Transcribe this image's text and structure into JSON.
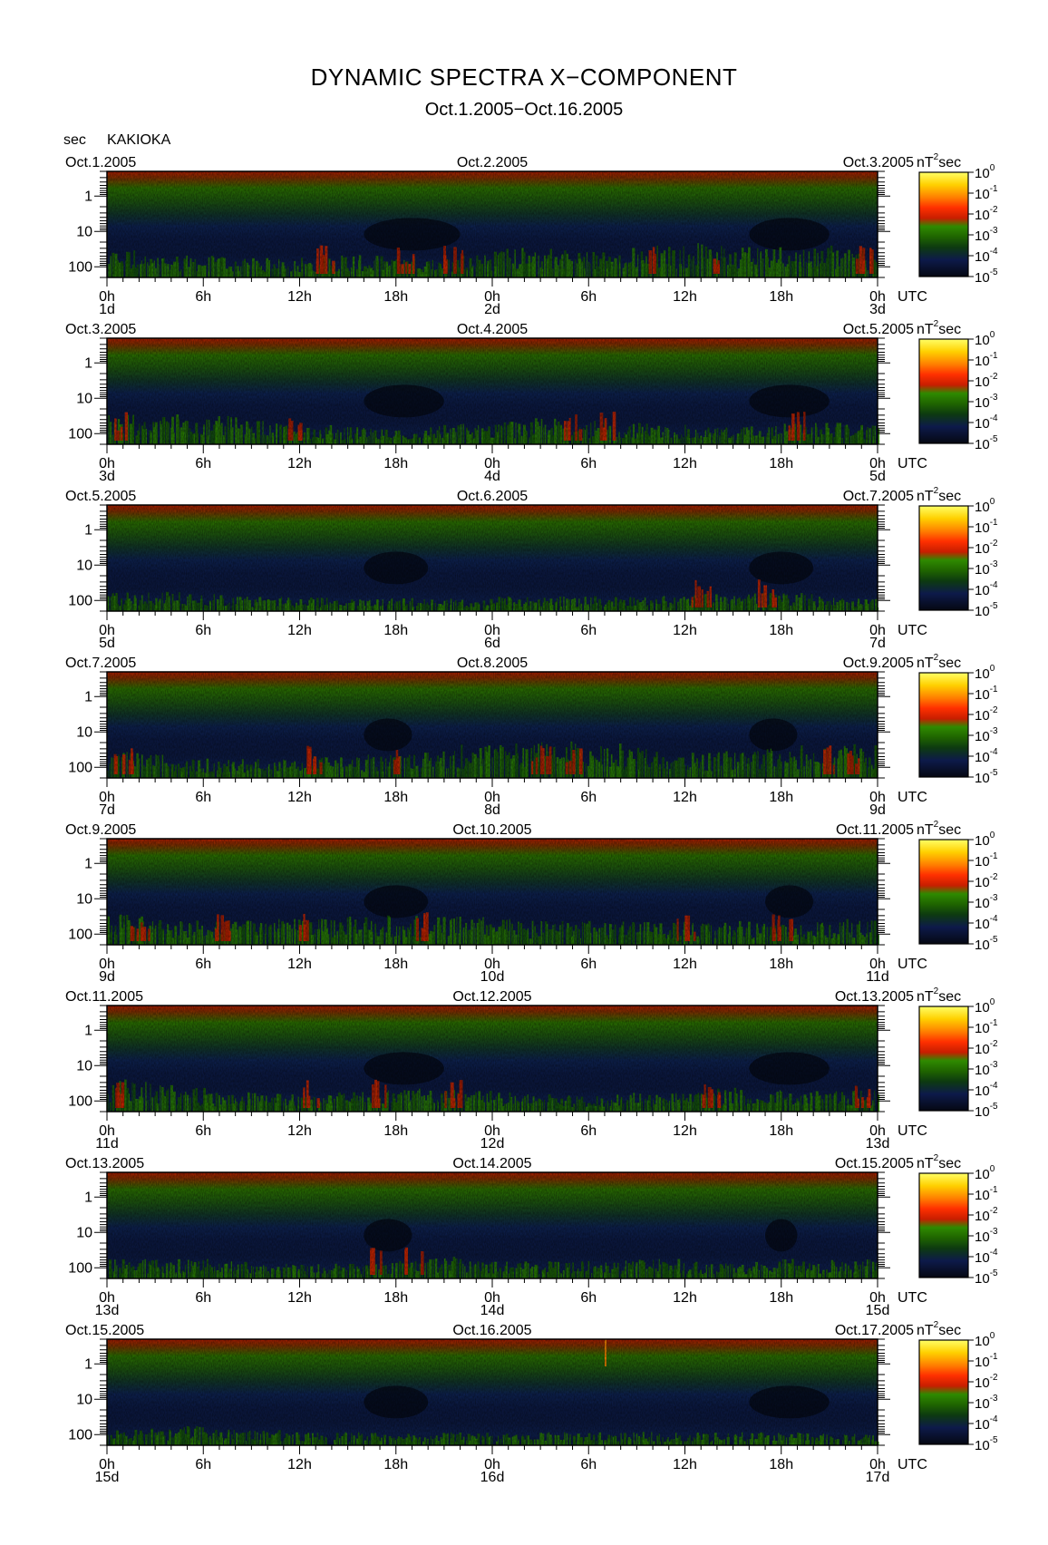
{
  "title": "DYNAMIC SPECTRA X−COMPONENT",
  "subtitle": "Oct.1.2005−Oct.16.2005",
  "y_unit": "sec",
  "station": "KAKIOKA",
  "time_axis_label": "UTC",
  "colorbar_unit_prefix": "nT",
  "colorbar_unit_exp": "2",
  "colorbar_unit_suffix": "sec",
  "chart_data": {
    "type": "heatmap",
    "ylabel": "sec",
    "y_scale": "log",
    "y_ticks": [
      "1",
      "10",
      "100"
    ],
    "x_ticks": [
      "0h",
      "6h",
      "12h",
      "18h",
      "0h",
      "6h",
      "12h",
      "18h",
      "0h"
    ],
    "colorbar": {
      "scale": "log",
      "tick_base": "10",
      "tick_exponents": [
        "0",
        "-1",
        "-2",
        "-3",
        "-4",
        "-5"
      ],
      "colors": [
        "#ffff66",
        "#ffc000",
        "#ff6000",
        "#e02000",
        "#b41e00",
        "#2f7f00",
        "#1f5f00",
        "#0b3818",
        "#0d1a4a",
        "#050812"
      ]
    },
    "panels": [
      {
        "start_label": "Oct.1.2005",
        "mid_label": "Oct.2.2005",
        "end_label": "Oct.3.2005",
        "day_start": "1d",
        "day_mid": "2d",
        "day_end": "3d",
        "dark_band_hours": [
          [
            16,
            22
          ],
          [
            40,
            45
          ]
        ],
        "red_event_hours": [
          13.5,
          18.5,
          21.5,
          34,
          38,
          47
        ],
        "activity": [
          0.65,
          0.5,
          0.55,
          0.5,
          0.45,
          0.45,
          0.5,
          0.55,
          0.5,
          0.45,
          0.45,
          0.55,
          0.7,
          0.7,
          0.65,
          0.6,
          0.7,
          0.75,
          0.8,
          0.75,
          0.75,
          0.7,
          0.75,
          0.65,
          0.6
        ]
      },
      {
        "start_label": "Oct.3.2005",
        "mid_label": "Oct.4.2005",
        "end_label": "Oct.5.2005",
        "day_start": "3d",
        "day_mid": "4d",
        "day_end": "5d",
        "dark_band_hours": [
          [
            16,
            21
          ],
          [
            40,
            45
          ]
        ],
        "red_event_hours": [
          1,
          11.5,
          29,
          31,
          43
        ],
        "activity": [
          0.75,
          0.7,
          0.75,
          0.65,
          0.55,
          0.5,
          0.45,
          0.4,
          0.35,
          0.35,
          0.45,
          0.5,
          0.55,
          0.6,
          0.55,
          0.55,
          0.5,
          0.45,
          0.4,
          0.4,
          0.45,
          0.5,
          0.5,
          0.45,
          0.45
        ]
      },
      {
        "start_label": "Oct.5.2005",
        "mid_label": "Oct.6.2005",
        "end_label": "Oct.7.2005",
        "day_start": "5d",
        "day_mid": "6d",
        "day_end": "7d",
        "dark_band_hours": [
          [
            16,
            20
          ],
          [
            40,
            44
          ]
        ],
        "red_event_hours": [
          37,
          41
        ],
        "activity": [
          0.45,
          0.45,
          0.45,
          0.4,
          0.35,
          0.35,
          0.35,
          0.3,
          0.3,
          0.3,
          0.3,
          0.3,
          0.35,
          0.35,
          0.35,
          0.35,
          0.35,
          0.35,
          0.4,
          0.4,
          0.45,
          0.45,
          0.35,
          0.3,
          0.3
        ]
      },
      {
        "start_label": "Oct.7.2005",
        "mid_label": "Oct.8.2005",
        "end_label": "Oct.9.2005",
        "day_start": "7d",
        "day_mid": "8d",
        "day_end": "9d",
        "dark_band_hours": [
          [
            16,
            19
          ],
          [
            40,
            43
          ]
        ],
        "red_event_hours": [
          1,
          13,
          17.5,
          27,
          29,
          45,
          46.5
        ],
        "activity": [
          0.6,
          0.55,
          0.5,
          0.45,
          0.45,
          0.45,
          0.5,
          0.5,
          0.55,
          0.6,
          0.65,
          0.8,
          0.85,
          0.9,
          0.85,
          0.8,
          0.7,
          0.65,
          0.6,
          0.65,
          0.7,
          0.75,
          0.8,
          0.8,
          0.75
        ]
      },
      {
        "start_label": "Oct.9.2005",
        "mid_label": "Oct.10.2005",
        "end_label": "Oct.11.2005",
        "day_start": "9d",
        "day_mid": "10d",
        "day_end": "11d",
        "dark_band_hours": [
          [
            16,
            20
          ],
          [
            41,
            44
          ]
        ],
        "red_event_hours": [
          2,
          7,
          12,
          19.5,
          36,
          42
        ],
        "activity": [
          0.75,
          0.65,
          0.6,
          0.55,
          0.6,
          0.6,
          0.6,
          0.65,
          0.7,
          0.7,
          0.7,
          0.65,
          0.6,
          0.55,
          0.55,
          0.5,
          0.55,
          0.55,
          0.55,
          0.55,
          0.5,
          0.5,
          0.55,
          0.6,
          0.6
        ]
      },
      {
        "start_label": "Oct.11.2005",
        "mid_label": "Oct.12.2005",
        "end_label": "Oct.13.2005",
        "day_start": "11d",
        "day_mid": "12d",
        "day_end": "13d",
        "dark_band_hours": [
          [
            16,
            21
          ],
          [
            40,
            45
          ]
        ],
        "red_event_hours": [
          0.5,
          12.5,
          17,
          21.5,
          37.5,
          47
        ],
        "activity": [
          0.75,
          0.7,
          0.55,
          0.45,
          0.45,
          0.45,
          0.45,
          0.5,
          0.55,
          0.55,
          0.55,
          0.5,
          0.45,
          0.4,
          0.4,
          0.4,
          0.45,
          0.45,
          0.45,
          0.55,
          0.5,
          0.45,
          0.5,
          0.55,
          0.55
        ]
      },
      {
        "start_label": "Oct.13.2005",
        "mid_label": "Oct.14.2005",
        "end_label": "Oct.15.2005",
        "day_start": "13d",
        "day_mid": "14d",
        "day_end": "15d",
        "dark_band_hours": [
          [
            16,
            19
          ],
          [
            41,
            43
          ]
        ],
        "red_event_hours": [
          16.5,
          19
        ],
        "activity": [
          0.45,
          0.45,
          0.45,
          0.45,
          0.4,
          0.35,
          0.35,
          0.35,
          0.4,
          0.45,
          0.5,
          0.45,
          0.4,
          0.4,
          0.4,
          0.4,
          0.45,
          0.45,
          0.4,
          0.35,
          0.4,
          0.45,
          0.45,
          0.45,
          0.45
        ]
      },
      {
        "start_label": "Oct.15.2005",
        "mid_label": "Oct.16.2005",
        "end_label": "Oct.17.2005",
        "day_start": "15d",
        "day_mid": "16d",
        "day_end": "17d",
        "dark_band_hours": [
          [
            16,
            20
          ],
          [
            40,
            45
          ]
        ],
        "red_event_hours": [],
        "activity": [
          0.4,
          0.4,
          0.45,
          0.4,
          0.35,
          0.35,
          0.3,
          0.3,
          0.3,
          0.3,
          0.3,
          0.3,
          0.3,
          0.3,
          0.3,
          0.3,
          0.35,
          0.3,
          0.3,
          0.3,
          0.3,
          0.3,
          0.3,
          0.3,
          0.3
        ],
        "spike_hour": 31
      }
    ]
  }
}
